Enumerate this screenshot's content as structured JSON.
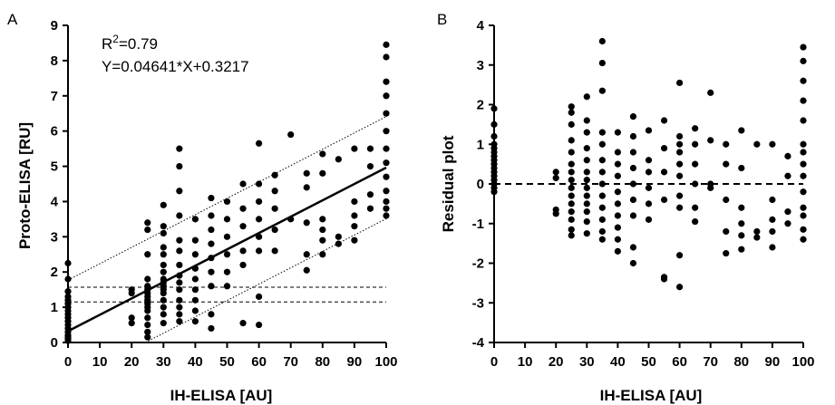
{
  "chart_data": [
    {
      "panel": "A",
      "type": "scatter",
      "xlabel": "IH-ELISA [AU]",
      "ylabel": "Proto-ELISA [RU]",
      "xlim": [
        0,
        100
      ],
      "ylim": [
        0,
        9
      ],
      "xticks": [
        "0",
        "10",
        "20",
        "30",
        "40",
        "50",
        "60",
        "70",
        "80",
        "90",
        "100"
      ],
      "yticks": [
        "0",
        "1",
        "2",
        "3",
        "4",
        "5",
        "6",
        "7",
        "8",
        "9"
      ],
      "annotation": {
        "r2_prefix": "R",
        "r2_sup": "2",
        "r2_value": "=0.79",
        "equation": "Y=0.04641*X+0.3217"
      },
      "regression": {
        "slope": 0.04641,
        "intercept": 0.3217
      },
      "prediction_band_offset": 1.45,
      "cutoffs": [
        1.15,
        1.57
      ],
      "points": [
        [
          0,
          0.05
        ],
        [
          0,
          0.1
        ],
        [
          0,
          0.15
        ],
        [
          0,
          0.2
        ],
        [
          0,
          0.3
        ],
        [
          0,
          0.4
        ],
        [
          0,
          0.5
        ],
        [
          0,
          0.6
        ],
        [
          0,
          0.7
        ],
        [
          0,
          0.8
        ],
        [
          0,
          0.9
        ],
        [
          0,
          1.0
        ],
        [
          0,
          1.1
        ],
        [
          0,
          1.2
        ],
        [
          0,
          1.3
        ],
        [
          0,
          1.45
        ],
        [
          0,
          1.8
        ],
        [
          0,
          2.25
        ],
        [
          20,
          0.55
        ],
        [
          20,
          0.7
        ],
        [
          20,
          1.4
        ],
        [
          20,
          1.5
        ],
        [
          25,
          0.15
        ],
        [
          25,
          0.3
        ],
        [
          25,
          0.5
        ],
        [
          25,
          0.7
        ],
        [
          25,
          0.9
        ],
        [
          25,
          1.0
        ],
        [
          25,
          1.1
        ],
        [
          25,
          1.2
        ],
        [
          25,
          1.3
        ],
        [
          25,
          1.4
        ],
        [
          25,
          1.5
        ],
        [
          25,
          1.6
        ],
        [
          25,
          1.8
        ],
        [
          25,
          2.5
        ],
        [
          25,
          3.2
        ],
        [
          25,
          3.4
        ],
        [
          30,
          0.55
        ],
        [
          30,
          0.8
        ],
        [
          30,
          1.0
        ],
        [
          30,
          1.2
        ],
        [
          30,
          1.4
        ],
        [
          30,
          1.5
        ],
        [
          30,
          1.6
        ],
        [
          30,
          1.7
        ],
        [
          30,
          1.8
        ],
        [
          30,
          2.0
        ],
        [
          30,
          2.2
        ],
        [
          30,
          2.5
        ],
        [
          30,
          2.7
        ],
        [
          30,
          3.1
        ],
        [
          30,
          3.3
        ],
        [
          30,
          3.9
        ],
        [
          35,
          0.6
        ],
        [
          35,
          0.8
        ],
        [
          35,
          1.0
        ],
        [
          35,
          1.2
        ],
        [
          35,
          1.5
        ],
        [
          35,
          1.7
        ],
        [
          35,
          1.9
        ],
        [
          35,
          2.2
        ],
        [
          35,
          2.6
        ],
        [
          35,
          2.9
        ],
        [
          35,
          3.6
        ],
        [
          35,
          4.3
        ],
        [
          35,
          5.0
        ],
        [
          35,
          5.5
        ],
        [
          40,
          0.6
        ],
        [
          40,
          0.9
        ],
        [
          40,
          1.2
        ],
        [
          40,
          1.5
        ],
        [
          40,
          1.8
        ],
        [
          40,
          2.1
        ],
        [
          40,
          2.5
        ],
        [
          40,
          2.9
        ],
        [
          40,
          3.5
        ],
        [
          45,
          0.4
        ],
        [
          45,
          0.8
        ],
        [
          45,
          1.6
        ],
        [
          45,
          2.0
        ],
        [
          45,
          2.4
        ],
        [
          45,
          2.8
        ],
        [
          45,
          3.2
        ],
        [
          45,
          3.6
        ],
        [
          45,
          4.1
        ],
        [
          50,
          1.6
        ],
        [
          50,
          2.0
        ],
        [
          50,
          2.5
        ],
        [
          50,
          3.0
        ],
        [
          50,
          3.5
        ],
        [
          50,
          4.0
        ],
        [
          55,
          0.55
        ],
        [
          55,
          2.2
        ],
        [
          55,
          2.6
        ],
        [
          55,
          3.3
        ],
        [
          55,
          3.8
        ],
        [
          55,
          4.5
        ],
        [
          60,
          0.5
        ],
        [
          60,
          1.3
        ],
        [
          60,
          2.6
        ],
        [
          60,
          3.0
        ],
        [
          60,
          3.5
        ],
        [
          60,
          4.0
        ],
        [
          60,
          4.5
        ],
        [
          60,
          5.65
        ],
        [
          65,
          2.6
        ],
        [
          65,
          3.2
        ],
        [
          65,
          3.8
        ],
        [
          65,
          4.3
        ],
        [
          65,
          4.75
        ],
        [
          70,
          3.5
        ],
        [
          70,
          5.9
        ],
        [
          75,
          2.05
        ],
        [
          75,
          2.5
        ],
        [
          75,
          3.4
        ],
        [
          75,
          4.4
        ],
        [
          75,
          4.8
        ],
        [
          80,
          2.5
        ],
        [
          80,
          2.9
        ],
        [
          80,
          3.2
        ],
        [
          80,
          3.5
        ],
        [
          80,
          4.8
        ],
        [
          80,
          5.35
        ],
        [
          85,
          2.8
        ],
        [
          85,
          3.0
        ],
        [
          85,
          5.2
        ],
        [
          90,
          2.9
        ],
        [
          90,
          3.3
        ],
        [
          90,
          3.6
        ],
        [
          90,
          4.0
        ],
        [
          90,
          5.5
        ],
        [
          95,
          3.8
        ],
        [
          95,
          4.2
        ],
        [
          95,
          5.0
        ],
        [
          95,
          5.5
        ],
        [
          100,
          3.6
        ],
        [
          100,
          3.8
        ],
        [
          100,
          4.0
        ],
        [
          100,
          4.3
        ],
        [
          100,
          4.7
        ],
        [
          100,
          5.1
        ],
        [
          100,
          5.5
        ],
        [
          100,
          6.0
        ],
        [
          100,
          6.5
        ],
        [
          100,
          7.0
        ],
        [
          100,
          7.4
        ],
        [
          100,
          8.1
        ],
        [
          100,
          8.45
        ]
      ]
    },
    {
      "panel": "B",
      "type": "scatter",
      "xlabel": "IH-ELISA [AU]",
      "ylabel": "Residual plot",
      "xlim": [
        0,
        100
      ],
      "ylim": [
        -4,
        4
      ],
      "xticks": [
        "0",
        "10",
        "20",
        "30",
        "40",
        "50",
        "60",
        "70",
        "80",
        "90",
        "100"
      ],
      "yticks": [
        "-4",
        "-3",
        "-2",
        "-1",
        "0",
        "1",
        "2",
        "3",
        "4"
      ],
      "zero_line": 0,
      "points": [
        [
          0,
          -0.2
        ],
        [
          0,
          -0.1
        ],
        [
          0,
          0.0
        ],
        [
          0,
          0.1
        ],
        [
          0,
          0.2
        ],
        [
          0,
          0.3
        ],
        [
          0,
          0.4
        ],
        [
          0,
          0.5
        ],
        [
          0,
          0.6
        ],
        [
          0,
          0.7
        ],
        [
          0,
          0.8
        ],
        [
          0,
          0.9
        ],
        [
          0,
          1.0
        ],
        [
          0,
          1.2
        ],
        [
          0,
          1.5
        ],
        [
          0,
          1.9
        ],
        [
          20,
          -0.75
        ],
        [
          20,
          -0.65
        ],
        [
          20,
          0.15
        ],
        [
          20,
          0.3
        ],
        [
          25,
          -1.3
        ],
        [
          25,
          -1.15
        ],
        [
          25,
          -0.9
        ],
        [
          25,
          -0.7
        ],
        [
          25,
          -0.5
        ],
        [
          25,
          -0.3
        ],
        [
          25,
          -0.1
        ],
        [
          25,
          0.1
        ],
        [
          25,
          0.3
        ],
        [
          25,
          0.5
        ],
        [
          25,
          0.8
        ],
        [
          25,
          1.1
        ],
        [
          25,
          1.5
        ],
        [
          25,
          1.8
        ],
        [
          25,
          1.95
        ],
        [
          30,
          -1.25
        ],
        [
          30,
          -0.95
        ],
        [
          30,
          -0.7
        ],
        [
          30,
          -0.5
        ],
        [
          30,
          -0.3
        ],
        [
          30,
          -0.1
        ],
        [
          30,
          0.1
        ],
        [
          30,
          0.3
        ],
        [
          30,
          0.6
        ],
        [
          30,
          0.9
        ],
        [
          30,
          1.3
        ],
        [
          30,
          1.6
        ],
        [
          30,
          2.2
        ],
        [
          35,
          -1.4
        ],
        [
          35,
          -1.2
        ],
        [
          35,
          -0.9
        ],
        [
          35,
          -0.6
        ],
        [
          35,
          -0.3
        ],
        [
          35,
          0.0
        ],
        [
          35,
          0.3
        ],
        [
          35,
          0.6
        ],
        [
          35,
          1.0
        ],
        [
          35,
          1.3
        ],
        [
          35,
          2.35
        ],
        [
          35,
          3.05
        ],
        [
          35,
          3.6
        ],
        [
          40,
          -1.7
        ],
        [
          40,
          -1.4
        ],
        [
          40,
          -1.1
        ],
        [
          40,
          -0.8
        ],
        [
          40,
          -0.5
        ],
        [
          40,
          -0.2
        ],
        [
          40,
          0.2
        ],
        [
          40,
          0.5
        ],
        [
          40,
          0.8
        ],
        [
          40,
          1.3
        ],
        [
          45,
          -2.0
        ],
        [
          45,
          -1.6
        ],
        [
          45,
          -0.8
        ],
        [
          45,
          -0.4
        ],
        [
          45,
          0.0
        ],
        [
          45,
          0.4
        ],
        [
          45,
          0.8
        ],
        [
          45,
          1.2
        ],
        [
          45,
          1.7
        ],
        [
          50,
          -0.9
        ],
        [
          50,
          -0.5
        ],
        [
          50,
          -0.1
        ],
        [
          50,
          0.3
        ],
        [
          50,
          0.6
        ],
        [
          50,
          1.35
        ],
        [
          55,
          -2.35
        ],
        [
          55,
          -2.4
        ],
        [
          55,
          -0.4
        ],
        [
          55,
          0.3
        ],
        [
          55,
          0.9
        ],
        [
          55,
          1.6
        ],
        [
          60,
          -2.6
        ],
        [
          60,
          -1.8
        ],
        [
          60,
          -0.6
        ],
        [
          60,
          -0.3
        ],
        [
          60,
          0.2
        ],
        [
          60,
          0.5
        ],
        [
          60,
          0.8
        ],
        [
          60,
          1.0
        ],
        [
          60,
          1.2
        ],
        [
          60,
          2.55
        ],
        [
          65,
          -0.95
        ],
        [
          65,
          -0.6
        ],
        [
          65,
          0.0
        ],
        [
          65,
          0.5
        ],
        [
          65,
          1.0
        ],
        [
          65,
          1.4
        ],
        [
          70,
          -0.1
        ],
        [
          70,
          0.0
        ],
        [
          70,
          1.1
        ],
        [
          70,
          2.3
        ],
        [
          75,
          -1.75
        ],
        [
          75,
          -1.2
        ],
        [
          75,
          -0.4
        ],
        [
          75,
          0.5
        ],
        [
          75,
          1.0
        ],
        [
          80,
          -1.65
        ],
        [
          80,
          -1.3
        ],
        [
          80,
          -1.0
        ],
        [
          80,
          -0.6
        ],
        [
          80,
          0.4
        ],
        [
          80,
          1.35
        ],
        [
          85,
          -1.35
        ],
        [
          85,
          -1.2
        ],
        [
          85,
          1.0
        ],
        [
          90,
          -1.6
        ],
        [
          90,
          -1.2
        ],
        [
          90,
          -0.9
        ],
        [
          90,
          -0.4
        ],
        [
          90,
          1.0
        ],
        [
          95,
          -1.0
        ],
        [
          95,
          -0.7
        ],
        [
          95,
          0.2
        ],
        [
          95,
          0.7
        ],
        [
          100,
          -1.4
        ],
        [
          100,
          -1.15
        ],
        [
          100,
          -0.8
        ],
        [
          100,
          -0.6
        ],
        [
          100,
          -0.2
        ],
        [
          100,
          0.2
        ],
        [
          100,
          0.5
        ],
        [
          100,
          0.8
        ],
        [
          100,
          1.0
        ],
        [
          100,
          1.6
        ],
        [
          100,
          2.1
        ],
        [
          100,
          2.6
        ],
        [
          100,
          3.1
        ],
        [
          100,
          3.45
        ]
      ]
    }
  ]
}
